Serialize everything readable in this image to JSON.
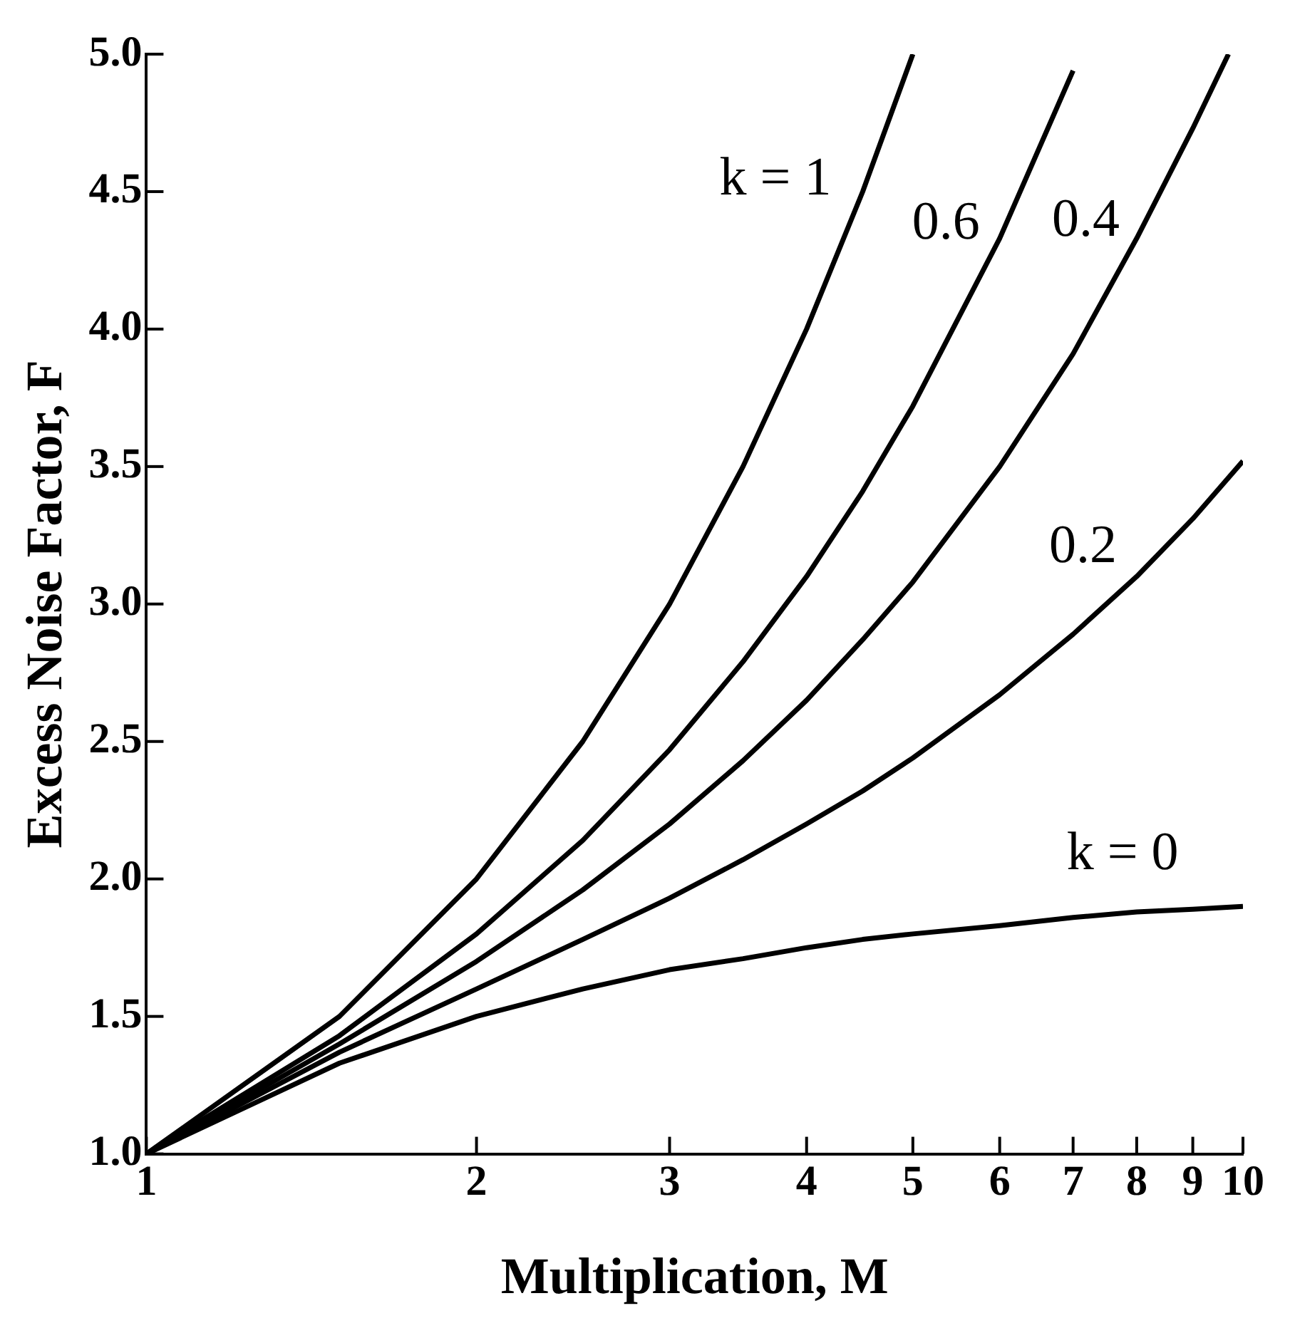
{
  "chart_data": {
    "type": "line",
    "xlabel": "Multiplication, M",
    "ylabel": "Excess Noise Factor, F",
    "log": "x",
    "xlim": [
      1,
      10
    ],
    "xticks": [
      1,
      2,
      3,
      4,
      5,
      6,
      7,
      8,
      9,
      10
    ],
    "ylim": [
      1,
      5
    ],
    "yticks": [
      {
        "value": 1,
        "label": "1.0"
      },
      {
        "value": 1.5,
        "label": "1.5"
      },
      {
        "value": 2,
        "label": "2.0"
      },
      {
        "value": 2.5,
        "label": "2.5"
      },
      {
        "value": 3,
        "label": "3.0"
      },
      {
        "value": 3.5,
        "label": "3.5"
      },
      {
        "value": 4,
        "label": "4.0"
      },
      {
        "value": 4.5,
        "label": "4.5"
      },
      {
        "value": 5,
        "label": "5.0"
      }
    ],
    "grid": false,
    "legend": false,
    "marker": "none",
    "line_style": "solid",
    "series": [
      {
        "name": "k = 1",
        "color": "#000000",
        "x": [
          1,
          1.5,
          2,
          2.5,
          3,
          3.5,
          4,
          4.5,
          5
        ],
        "values": [
          1,
          1.5,
          2,
          2.5,
          3,
          3.5,
          4,
          4.5,
          5
        ]
      },
      {
        "name": "0.6",
        "color": "#000000",
        "x": [
          1,
          1.5,
          2,
          2.5,
          3,
          3.5,
          4,
          4.5,
          5,
          6,
          7
        ],
        "values": [
          1,
          1.43,
          1.8,
          2.14,
          2.47,
          2.79,
          3.1,
          3.41,
          3.72,
          4.33,
          4.94
        ]
      },
      {
        "name": "0.4",
        "color": "#000000",
        "x": [
          1,
          1.5,
          2,
          2.5,
          3,
          3.5,
          4,
          4.5,
          5,
          6,
          7,
          8,
          9,
          9.7
        ],
        "values": [
          1,
          1.4,
          1.7,
          1.96,
          2.2,
          2.43,
          2.65,
          2.87,
          3.08,
          3.5,
          3.91,
          4.33,
          4.73,
          5
        ]
      },
      {
        "name": "0.2",
        "color": "#000000",
        "x": [
          1,
          1.5,
          2,
          2.5,
          3,
          3.5,
          4,
          4.5,
          5,
          6,
          7,
          8,
          9,
          10
        ],
        "values": [
          1,
          1.37,
          1.6,
          1.78,
          1.93,
          2.07,
          2.2,
          2.32,
          2.44,
          2.67,
          2.89,
          3.1,
          3.31,
          3.52
        ]
      },
      {
        "name": "k = 0",
        "color": "#000000",
        "x": [
          1,
          1.5,
          2,
          2.5,
          3,
          3.5,
          4,
          4.5,
          5,
          6,
          7,
          8,
          9,
          10
        ],
        "values": [
          1,
          1.33,
          1.5,
          1.6,
          1.67,
          1.71,
          1.75,
          1.78,
          1.8,
          1.83,
          1.86,
          1.88,
          1.89,
          1.9
        ]
      }
    ]
  }
}
